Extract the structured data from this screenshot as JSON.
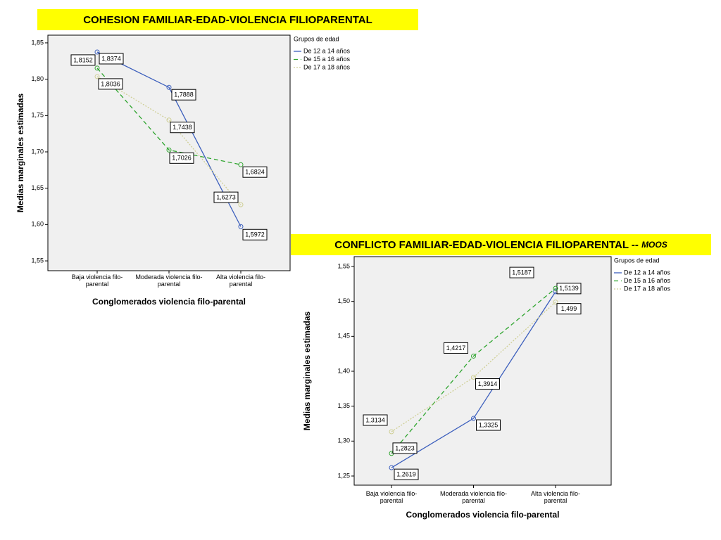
{
  "chart_data": [
    {
      "type": "line",
      "title": "COHESION FAMILIAR-EDAD-VIOLENCIA FILIOPARENTAL",
      "x_label": "Conglomerados violencia filo-parental",
      "y_label": "Medias marginales estimadas",
      "legend_title": "Grupos de edad",
      "categories": [
        "Baja violencia filo-parental",
        "Moderada violencia filo-parental",
        "Alta violencia filo-parental"
      ],
      "ylim": [
        1.5365,
        1.8606
      ],
      "yticks": [
        {
          "value": 1.55,
          "label": "1,55"
        },
        {
          "value": 1.6,
          "label": "1,60"
        },
        {
          "value": 1.65,
          "label": "1,65"
        },
        {
          "value": 1.7,
          "label": "1,70"
        },
        {
          "value": 1.75,
          "label": "1,75"
        },
        {
          "value": 1.8,
          "label": "1,80"
        },
        {
          "value": 1.85,
          "label": "1,85"
        }
      ],
      "series": [
        {
          "name": "De 12 a 14 años",
          "color": "#3c5fbd",
          "dash": "solid",
          "values": [
            1.8374,
            1.7888,
            1.5972
          ],
          "value_labels": [
            "1,8374",
            "1,7888",
            "1,5972"
          ]
        },
        {
          "name": "De 15 a 16 años",
          "color": "#2fa52f",
          "dash": "dashed",
          "values": [
            1.8152,
            1.7026,
            1.6824
          ],
          "value_labels": [
            "1,8152",
            "1,7026",
            "1,6824"
          ]
        },
        {
          "name": "De 17 a 18 años",
          "color": "#cfcf96",
          "dash": "dotted",
          "values": [
            1.8036,
            1.7438,
            1.6273
          ],
          "value_labels": [
            "1,8036",
            "1,7438",
            "1,6273"
          ]
        }
      ]
    },
    {
      "type": "line",
      "title": "CONFLICTO FAMILIAR-EDAD-VIOLENCIA FILIOPARENTAL --",
      "title_note": "MOOS",
      "x_label": "Conglomerados violencia filo-parental",
      "y_label": "Medias marginales estimadas",
      "legend_title": "Grupos de edad",
      "categories": [
        "Baja violencia filo-parental",
        "Moderada violencia filo-parental",
        "Alta violencia filo-parental"
      ],
      "ylim": [
        1.2369,
        1.5641
      ],
      "yticks": [
        {
          "value": 1.25,
          "label": "1,25"
        },
        {
          "value": 1.3,
          "label": "1,30"
        },
        {
          "value": 1.35,
          "label": "1,35"
        },
        {
          "value": 1.4,
          "label": "1,40"
        },
        {
          "value": 1.45,
          "label": "1,45"
        },
        {
          "value": 1.5,
          "label": "1,50"
        },
        {
          "value": 1.55,
          "label": "1,55"
        }
      ],
      "series": [
        {
          "name": "De 12 a 14 años",
          "color": "#3c5fbd",
          "dash": "solid",
          "values": [
            1.2619,
            1.3325,
            1.5139
          ],
          "value_labels": [
            "1,2619",
            "1,3325",
            "1,5139"
          ]
        },
        {
          "name": "De 15 a 16 años",
          "color": "#2fa52f",
          "dash": "dashed",
          "values": [
            1.2823,
            1.4217,
            1.5187
          ],
          "value_labels": [
            "1,2823",
            "1,4217",
            "1,5187"
          ]
        },
        {
          "name": "De 17 a 18 años",
          "color": "#cfcf96",
          "dash": "dotted",
          "values": [
            1.3134,
            1.3914,
            1.499
          ],
          "value_labels": [
            "1,3134",
            "1,3914",
            "1,499"
          ]
        }
      ]
    }
  ]
}
